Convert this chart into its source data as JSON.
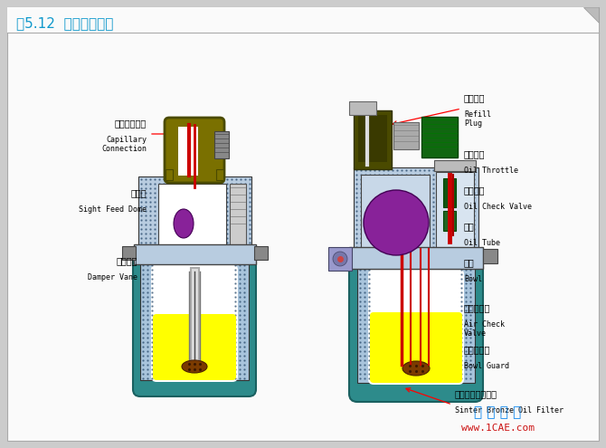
{
  "title": "图5.12  均衡式油雾器",
  "title_color": "#1199CC",
  "bg_color": "#DEDEDE",
  "page_color": "#FFFFFF",
  "watermark1": "仿 真 在 线",
  "watermark2": "www.1CAE.com",
  "wm1_color": "#1188EE",
  "wm2_color": "#CC1111",
  "col_teal": "#2D8B8B",
  "col_teal_dark": "#1A6060",
  "col_blue_dot": "#A8C4DC",
  "col_yellow": "#FFFF00",
  "col_olive": "#7A7000",
  "col_purple": "#882299",
  "col_green": "#116611",
  "col_red_tube": "#CC0000",
  "col_gray": "#999999",
  "col_darkgray": "#555555",
  "col_white": "#FFFFFF",
  "col_brown": "#7B3B00",
  "col_khaki": "#C8B86A",
  "col_black": "#111111",
  "col_olive_dark": "#4A4A00",
  "col_blue_body": "#B8CCE0"
}
